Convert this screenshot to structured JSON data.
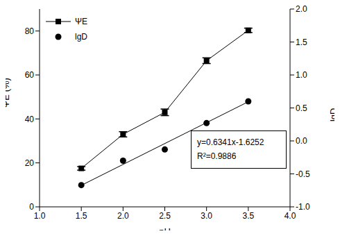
{
  "chart_data": {
    "type": "line",
    "x": [
      1.5,
      2.0,
      2.5,
      3.0,
      3.5
    ],
    "series": [
      {
        "name": "ΨE",
        "type": "line",
        "color": "#000000",
        "marker": "square",
        "values": [
          17.5,
          33.0,
          43.0,
          66.5,
          80.3
        ],
        "errors": [
          0.8,
          1.2,
          1.5,
          1.3,
          1.0
        ]
      },
      {
        "name": "lgD",
        "type": "scatter",
        "color": "#000000",
        "marker": "circle",
        "axis": "y2",
        "values": [
          -0.67,
          -0.3,
          -0.13,
          0.27,
          0.6
        ]
      }
    ],
    "fit_line": {
      "x": [
        1.5,
        3.5
      ],
      "values": [
        -0.674,
        0.594
      ],
      "color": "#000000"
    },
    "annotations": [
      "y=0.6341x-1.6252",
      "R²=0.9886"
    ],
    "x_label": "pH",
    "y_label": "ΨE (%)",
    "y2_label": "lgD",
    "xlim": [
      1.0,
      4.0
    ],
    "xticks": [
      {
        "value": 1.0,
        "label": "1.0"
      },
      {
        "value": 1.5,
        "label": "1.5"
      },
      {
        "value": 2.0,
        "label": "2.0"
      },
      {
        "value": 2.5,
        "label": "2.5"
      },
      {
        "value": 3.0,
        "label": "3.0"
      },
      {
        "value": 3.5,
        "label": "3.5"
      },
      {
        "value": 4.0,
        "label": "4.0"
      }
    ],
    "ylim": [
      0,
      90
    ],
    "yticks": [
      0,
      20,
      40,
      60,
      80
    ],
    "y2lim": [
      -1.0,
      2.0
    ],
    "y2ticks": [
      {
        "value": -1.0,
        "label": "-1.0"
      },
      {
        "value": -0.5,
        "label": "-0.5"
      },
      {
        "value": 0.0,
        "label": "0.0"
      },
      {
        "value": 0.5,
        "label": "0.5"
      },
      {
        "value": 1.0,
        "label": "1.0"
      },
      {
        "value": 1.5,
        "label": "1.5"
      },
      {
        "value": 2.0,
        "label": "2.0"
      }
    ],
    "legend": "top-left",
    "grid": false
  }
}
